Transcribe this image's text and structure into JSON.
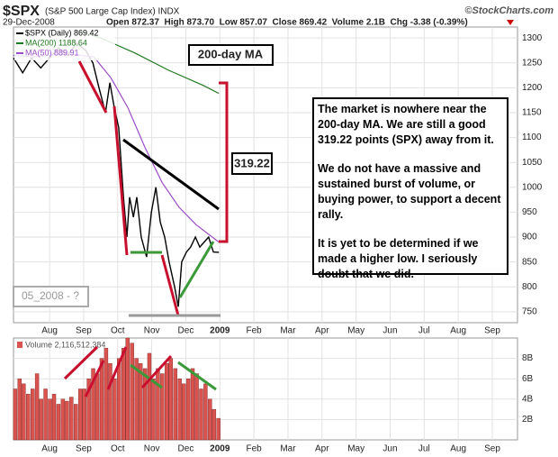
{
  "chart_data": [
    {
      "type": "line",
      "title": "$SPX",
      "subtitle": "(S&P 500 Large Cap Index) INDX",
      "source": "©StockCharts.com",
      "date": "29-Dec-2008",
      "quote": "Open 872.37  High 873.70  Low 857.07  Close 869.42  Volume 2.1B  Chg -3.38 (-0.39%)",
      "xlim": [
        5.94,
        20.74
      ],
      "xticks": [
        {
          "value": 7,
          "label": "Aug"
        },
        {
          "value": 8,
          "label": "Sep"
        },
        {
          "value": 9,
          "label": "Oct"
        },
        {
          "value": 10,
          "label": "Nov"
        },
        {
          "value": 11,
          "label": "Dec"
        },
        {
          "value": 12,
          "label": "2009"
        },
        {
          "value": 13,
          "label": "Feb"
        },
        {
          "value": 14,
          "label": "Mar"
        },
        {
          "value": 15,
          "label": "Apr"
        },
        {
          "value": 16,
          "label": "May"
        },
        {
          "value": 17,
          "label": "Jun"
        },
        {
          "value": 18,
          "label": "Jul"
        },
        {
          "value": 19,
          "label": "Aug"
        },
        {
          "value": 20,
          "label": "Sep"
        }
      ],
      "ylim": [
        728,
        1322
      ],
      "yticks": [
        750,
        800,
        850,
        900,
        950,
        1000,
        1050,
        1100,
        1150,
        1200,
        1250,
        1300
      ],
      "grid": true,
      "series": [
        {
          "name": "$SPX (Daily) 869.42",
          "color": "#000000",
          "x": [
            5.94,
            6.21,
            6.47,
            6.74,
            7.0,
            7.26,
            7.53,
            7.79,
            8.06,
            8.27,
            8.45,
            8.64,
            8.77,
            8.9,
            9.03,
            9.17,
            9.27,
            9.35,
            9.46,
            9.56,
            9.69,
            9.85,
            9.99,
            10.12,
            10.25,
            10.38,
            10.51,
            10.67,
            10.78,
            10.88,
            11.02,
            11.14,
            11.28,
            11.41,
            11.54,
            11.67,
            11.81,
            11.97
          ],
          "values": [
            1260,
            1230,
            1260,
            1240,
            1260,
            1280,
            1265,
            1290,
            1275,
            1250,
            1200,
            1150,
            1210,
            1160,
            1120,
            980,
            900,
            980,
            940,
            980,
            900,
            860,
            950,
            1000,
            930,
            900,
            850,
            800,
            760,
            850,
            870,
            880,
            900,
            880,
            890,
            900,
            870,
            869.42
          ]
        },
        {
          "name": "MA(200) 1188.64",
          "color": "#1f7a1f",
          "x": [
            7.8,
            8.5,
            9.5,
            10.5,
            11.5,
            11.97
          ],
          "values": [
            1315,
            1300,
            1270,
            1235,
            1205,
            1188.64
          ]
        },
        {
          "name": "MA(50) 889.91",
          "color": "#9b4dca",
          "x": [
            5.94,
            6.5,
            7.5,
            8.3,
            8.8,
            9.3,
            9.8,
            10.3,
            10.8,
            11.3,
            11.97
          ],
          "values": [
            1265,
            1262,
            1268,
            1262,
            1220,
            1160,
            1080,
            1010,
            960,
            925,
            889.91
          ]
        }
      ],
      "annotations": [
        "200-day MA",
        "319.22",
        "05_2008 - ?"
      ],
      "note": [
        "The market is nowhere near the 200-day MA. We are still a good 319.22 points (SPX) away from it.",
        "We do not have a massive and sustained burst of volume, or buying power, to support a decent rally.",
        "It is yet to be determined if we made a higher low. I seriously doubt that we did."
      ]
    },
    {
      "type": "bar",
      "xlim": [
        5.94,
        20.74
      ],
      "xticks": [
        {
          "value": 7,
          "label": "Aug"
        },
        {
          "value": 8,
          "label": "Sep"
        },
        {
          "value": 9,
          "label": "Oct"
        },
        {
          "value": 10,
          "label": "Nov"
        },
        {
          "value": 11,
          "label": "Dec"
        },
        {
          "value": 12,
          "label": "2009"
        },
        {
          "value": 13,
          "label": "Feb"
        },
        {
          "value": 14,
          "label": "Mar"
        },
        {
          "value": 15,
          "label": "Apr"
        },
        {
          "value": 16,
          "label": "May"
        },
        {
          "value": 17,
          "label": "Jun"
        },
        {
          "value": 18,
          "label": "Jul"
        },
        {
          "value": 19,
          "label": "Aug"
        },
        {
          "value": 20,
          "label": "Sep"
        }
      ],
      "ylim": [
        0,
        10000000000
      ],
      "yticks": [
        {
          "value": 2000000000,
          "label": "2B"
        },
        {
          "value": 4000000000,
          "label": "4B"
        },
        {
          "value": 6000000000,
          "label": "6B"
        },
        {
          "value": 8000000000,
          "label": "8B"
        }
      ],
      "grid": true,
      "series": [
        {
          "name": "Volume 2,116,512,384",
          "color": "#d9534f",
          "x": [
            5.99,
            6.12,
            6.24,
            6.37,
            6.5,
            6.63,
            6.75,
            6.88,
            7.01,
            7.13,
            7.26,
            7.39,
            7.51,
            7.64,
            7.77,
            7.9,
            8.02,
            8.15,
            8.28,
            8.4,
            8.53,
            8.66,
            8.78,
            8.91,
            9.04,
            9.17,
            9.29,
            9.42,
            9.55,
            9.67,
            9.8,
            9.93,
            10.05,
            10.18,
            10.31,
            10.44,
            10.56,
            10.69,
            10.82,
            10.94,
            11.07,
            11.2,
            11.32,
            11.45,
            11.58,
            11.71,
            11.83,
            11.96
          ],
          "values": [
            5000000000,
            6000000000,
            5500000000,
            4500000000,
            5000000000,
            6500000000,
            4000000000,
            5000000000,
            4000000000,
            4500000000,
            3500000000,
            4000000000,
            3800000000,
            4200000000,
            3500000000,
            5000000000,
            5000000000,
            6000000000,
            7000000000,
            6500000000,
            8000000000,
            9000000000,
            7500000000,
            6000000000,
            8000000000,
            9000000000,
            10000000000,
            9500000000,
            8000000000,
            7500000000,
            7000000000,
            8500000000,
            6000000000,
            7000000000,
            6500000000,
            7500000000,
            8000000000,
            7000000000,
            6000000000,
            5500000000,
            6000000000,
            7000000000,
            6500000000,
            5000000000,
            5500000000,
            4000000000,
            3000000000,
            2116512384
          ]
        }
      ]
    }
  ]
}
